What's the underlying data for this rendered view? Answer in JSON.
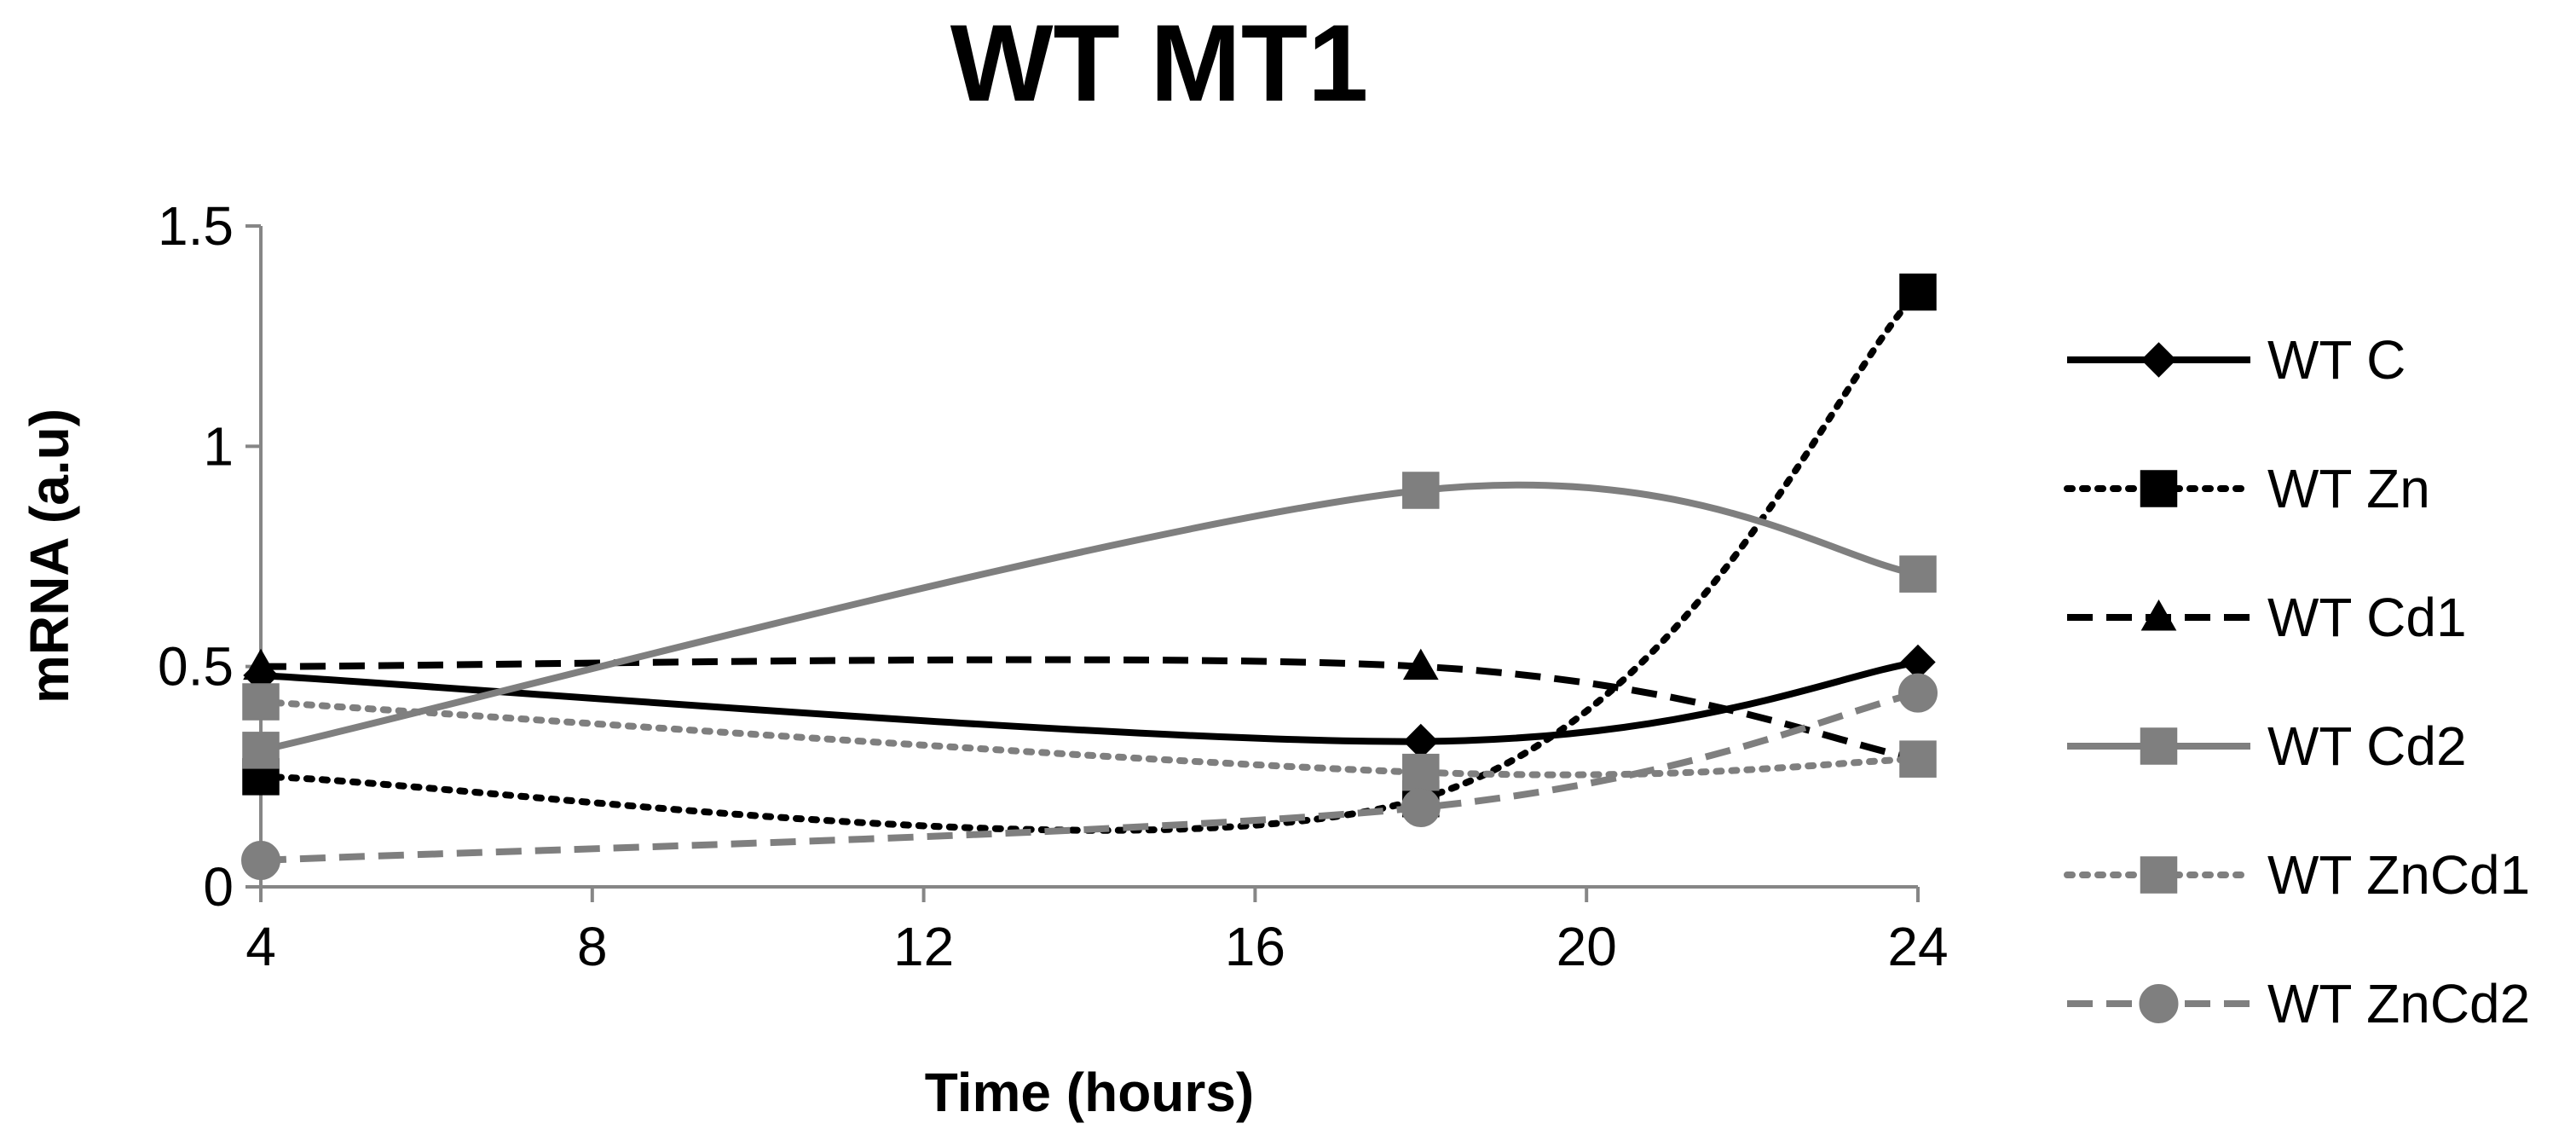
{
  "chart_data": {
    "type": "line",
    "title": "WT MT1",
    "xlabel": "Time (hours)",
    "ylabel": "mRNA (a.u)",
    "xlim": [
      4,
      24
    ],
    "ylim": [
      0,
      1.5
    ],
    "xticks": [
      4,
      8,
      12,
      16,
      20,
      24
    ],
    "yticks": [
      0,
      0.5,
      1,
      1.5
    ],
    "ytick_labels": [
      "0",
      "0.5",
      "1",
      "1.5"
    ],
    "grid": false,
    "legend_position": "right",
    "x": [
      4,
      18,
      24
    ],
    "series": [
      {
        "name": "WT C",
        "values": [
          0.48,
          0.33,
          0.51
        ],
        "color": "#000000",
        "dash": "solid",
        "marker": "diamond"
      },
      {
        "name": "WT Zn",
        "values": [
          0.25,
          0.2,
          1.35
        ],
        "color": "#000000",
        "dash": "dotted",
        "marker": "square"
      },
      {
        "name": "WT Cd1",
        "values": [
          0.5,
          0.5,
          0.29
        ],
        "color": "#000000",
        "dash": "dashed",
        "marker": "triangle"
      },
      {
        "name": "WT Cd2",
        "values": [
          0.31,
          0.9,
          0.71
        ],
        "color": "#7f7f7f",
        "dash": "solid",
        "marker": "square"
      },
      {
        "name": "WT ZnCd1",
        "values": [
          0.42,
          0.26,
          0.29
        ],
        "color": "#7f7f7f",
        "dash": "dotted",
        "marker": "square"
      },
      {
        "name": "WT ZnCd2",
        "values": [
          0.06,
          0.18,
          0.44
        ],
        "color": "#7f7f7f",
        "dash": "dashed",
        "marker": "circle"
      }
    ]
  }
}
